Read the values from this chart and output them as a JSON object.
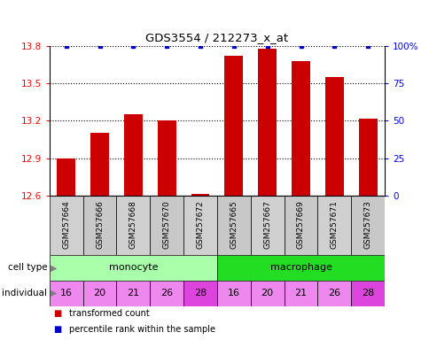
{
  "title": "GDS3554 / 212273_x_at",
  "samples": [
    "GSM257664",
    "GSM257666",
    "GSM257668",
    "GSM257670",
    "GSM257672",
    "GSM257665",
    "GSM257667",
    "GSM257669",
    "GSM257671",
    "GSM257673"
  ],
  "transformed_count": [
    12.9,
    13.1,
    13.25,
    13.2,
    12.61,
    13.72,
    13.78,
    13.68,
    13.55,
    13.22
  ],
  "percentile_rank": [
    100,
    100,
    100,
    100,
    100,
    100,
    100,
    100,
    100,
    100
  ],
  "cell_type_groups": [
    {
      "label": "monocyte",
      "start": 0,
      "end": 5,
      "color": "#AAFFAA"
    },
    {
      "label": "macrophage",
      "start": 5,
      "end": 10,
      "color": "#22DD22"
    }
  ],
  "individual": [
    16,
    20,
    21,
    26,
    28,
    16,
    20,
    21,
    26,
    28
  ],
  "individual_colors": [
    "#EE88EE",
    "#EE88EE",
    "#EE88EE",
    "#EE88EE",
    "#DD44DD",
    "#EE88EE",
    "#EE88EE",
    "#EE88EE",
    "#EE88EE",
    "#DD44DD"
  ],
  "ylim_left": [
    12.6,
    13.8
  ],
  "yticks_left": [
    12.6,
    12.9,
    13.2,
    13.5,
    13.8
  ],
  "ylim_right": [
    0,
    100
  ],
  "yticks_right": [
    0,
    25,
    50,
    75,
    100
  ],
  "bar_color": "#CC0000",
  "dot_color": "#0000CC",
  "bar_width": 0.55,
  "sample_bg_colors": [
    "#D0D0D0",
    "#C8C8C8"
  ],
  "legend_labels": [
    "transformed count",
    "percentile rank within the sample"
  ],
  "legend_colors": [
    "#CC0000",
    "#0000CC"
  ]
}
